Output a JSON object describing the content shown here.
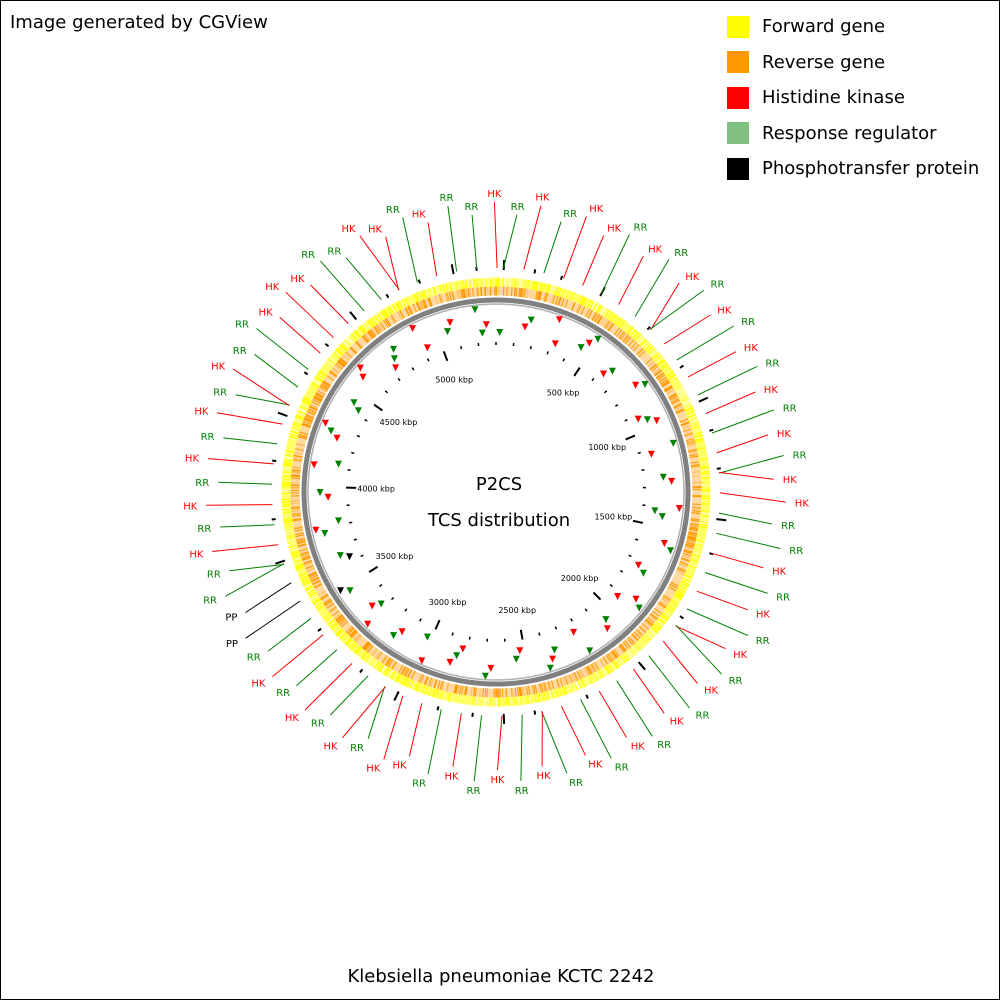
{
  "credit": "Image generated by CGView",
  "legend": [
    {
      "label": "Forward gene",
      "color": "#ffff00"
    },
    {
      "label": "Reverse gene",
      "color": "#ff9900"
    },
    {
      "label": "Histidine kinase",
      "color": "#ff0000"
    },
    {
      "label": "Response regulator",
      "color": "#80c080"
    },
    {
      "label": "Phosphotransfer protein",
      "color": "#000000"
    }
  ],
  "center": {
    "line1": "P2CS",
    "line2": "TCS distribution"
  },
  "caption": "Klebsiella pneumoniae KCTC 2242",
  "colors": {
    "hk": "#ff0000",
    "rr": "#008000",
    "pp": "#000000",
    "forward": "#ffff00",
    "reverse": "#ff9900",
    "backbone": "#808080"
  },
  "tick_labels": [
    "500 kbp",
    "1000 kbp",
    "1500 kbp",
    "2000 kbp",
    "2500 kbp",
    "3000 kbp",
    "3500 kbp",
    "4000 kbp",
    "4500 kbp",
    "5000 kbp"
  ],
  "feature_labels": [
    {
      "text": "RR",
      "type": "rr"
    },
    {
      "text": "HK",
      "type": "hk"
    },
    {
      "text": "RR",
      "type": "rr"
    },
    {
      "text": "HK",
      "type": "hk"
    },
    {
      "text": "HK",
      "type": "hk"
    },
    {
      "text": "RR",
      "type": "rr"
    },
    {
      "text": "HK",
      "type": "hk"
    },
    {
      "text": "RR",
      "type": "rr"
    },
    {
      "text": "HK",
      "type": "hk"
    },
    {
      "text": "RR",
      "type": "rr"
    },
    {
      "text": "HK",
      "type": "hk"
    },
    {
      "text": "RR",
      "type": "rr"
    },
    {
      "text": "HK",
      "type": "hk"
    },
    {
      "text": "RR",
      "type": "rr"
    },
    {
      "text": "HK",
      "type": "hk"
    },
    {
      "text": "RR",
      "type": "rr"
    },
    {
      "text": "HK",
      "type": "hk"
    },
    {
      "text": "RR",
      "type": "rr"
    },
    {
      "text": "HK",
      "type": "hk"
    },
    {
      "text": "HK",
      "type": "hk"
    },
    {
      "text": "RR",
      "type": "rr"
    },
    {
      "text": "RR",
      "type": "rr"
    },
    {
      "text": "HK",
      "type": "hk"
    },
    {
      "text": "RR",
      "type": "rr"
    },
    {
      "text": "HK",
      "type": "hk"
    },
    {
      "text": "RR",
      "type": "rr"
    },
    {
      "text": "HK",
      "type": "hk"
    },
    {
      "text": "RR",
      "type": "rr"
    },
    {
      "text": "HK",
      "type": "hk"
    },
    {
      "text": "RR",
      "type": "rr"
    },
    {
      "text": "HK",
      "type": "hk"
    },
    {
      "text": "RR",
      "type": "rr"
    },
    {
      "text": "HK",
      "type": "hk"
    },
    {
      "text": "RR",
      "type": "rr"
    },
    {
      "text": "HK",
      "type": "hk"
    },
    {
      "text": "RR",
      "type": "rr"
    },
    {
      "text": "HK",
      "type": "hk"
    },
    {
      "text": "RR",
      "type": "rr"
    },
    {
      "text": "HK",
      "type": "hk"
    },
    {
      "text": "RR",
      "type": "rr"
    },
    {
      "text": "HK",
      "type": "hk"
    },
    {
      "text": "RR",
      "type": "rr"
    },
    {
      "text": "HK",
      "type": "hk"
    },
    {
      "text": "HK",
      "type": "hk"
    },
    {
      "text": "RR",
      "type": "rr"
    },
    {
      "text": "HK",
      "type": "hk"
    },
    {
      "text": "RR",
      "type": "rr"
    },
    {
      "text": "HK",
      "type": "hk"
    },
    {
      "text": "RR",
      "type": "rr"
    },
    {
      "text": "HK",
      "type": "hk"
    },
    {
      "text": "RR",
      "type": "rr"
    },
    {
      "text": "PP",
      "type": "pp"
    },
    {
      "text": "PP",
      "type": "pp"
    },
    {
      "text": "RR",
      "type": "rr"
    },
    {
      "text": "RR",
      "type": "rr"
    },
    {
      "text": "HK",
      "type": "hk"
    },
    {
      "text": "RR",
      "type": "rr"
    },
    {
      "text": "HK",
      "type": "hk"
    },
    {
      "text": "RR",
      "type": "rr"
    },
    {
      "text": "HK",
      "type": "hk"
    },
    {
      "text": "RR",
      "type": "rr"
    },
    {
      "text": "HK",
      "type": "hk"
    },
    {
      "text": "RR",
      "type": "rr"
    },
    {
      "text": "HK",
      "type": "hk"
    },
    {
      "text": "RR",
      "type": "rr"
    },
    {
      "text": "RR",
      "type": "rr"
    },
    {
      "text": "HK",
      "type": "hk"
    },
    {
      "text": "HK",
      "type": "hk"
    },
    {
      "text": "HK",
      "type": "hk"
    },
    {
      "text": "RR",
      "type": "rr"
    },
    {
      "text": "RR",
      "type": "rr"
    },
    {
      "text": "HK",
      "type": "hk"
    },
    {
      "text": "HK",
      "type": "hk"
    },
    {
      "text": "RR",
      "type": "rr"
    },
    {
      "text": "HK",
      "type": "hk"
    },
    {
      "text": "RR",
      "type": "rr"
    },
    {
      "text": "RR",
      "type": "rr"
    },
    {
      "text": "HK",
      "type": "hk"
    }
  ]
}
